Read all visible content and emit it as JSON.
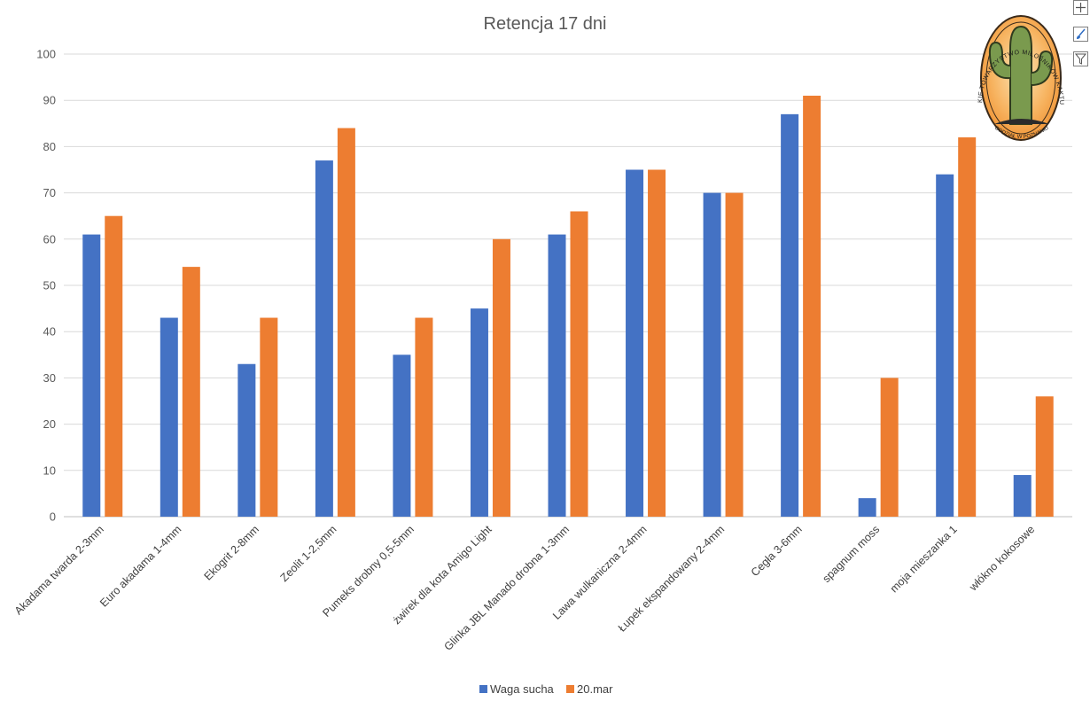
{
  "chart_data": {
    "type": "bar",
    "title": "Retencja 17 dni",
    "xlabel": "",
    "ylabel": "",
    "ylim": [
      0,
      100
    ],
    "yticks": [
      0,
      10,
      20,
      30,
      40,
      50,
      60,
      70,
      80,
      90,
      100
    ],
    "grid": true,
    "legend_position": "bottom",
    "categories": [
      "Akadama twarda 2-3mm",
      "Euro akadama 1-4mm",
      "Ekogrit 2-8mm",
      "Zeolit 1-2,5mm",
      "Pumeks drobny 0,5-5mm",
      "żwirek dla kota Amigo Light",
      "Glinka JBL Manado drobna 1-3mm",
      "Lawa wulkaniczna 2-4mm",
      "Łupek ekspandowany 2-4mm",
      "Cegła 3-6mm",
      "spagnum moss",
      "moja mieszanka 1",
      "włókno kokosowe"
    ],
    "series": [
      {
        "name": "Waga sucha",
        "color": "#4472c4",
        "values": [
          61,
          43,
          33,
          77,
          35,
          45,
          61,
          75,
          70,
          87,
          4,
          74,
          9
        ]
      },
      {
        "name": "20.mar",
        "color": "#ed7d31",
        "values": [
          65,
          54,
          43,
          84,
          43,
          60,
          66,
          75,
          70,
          91,
          30,
          82,
          26
        ]
      }
    ]
  },
  "logo": {
    "top_text": "POLSKIE TOWARZYSTWO MIŁOŚNIKÓW KAKTUSÓW",
    "bottom_text": "ODDZIAŁ W POZNANIU"
  },
  "toolbar": {
    "icons": [
      "plus-icon",
      "brush-icon",
      "filter-icon"
    ]
  }
}
